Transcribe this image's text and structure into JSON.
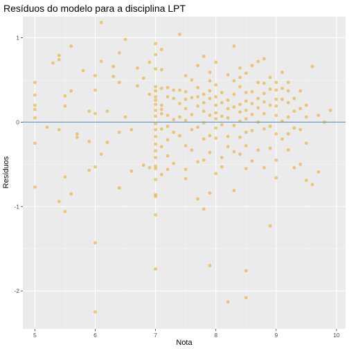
{
  "chart_data": {
    "type": "scatter",
    "title": "Resíduos do modelo para a disciplina LPT",
    "xlabel": "Nota",
    "ylabel": "Resíduos",
    "xlim": [
      4.8,
      10.15
    ],
    "ylim": [
      -2.45,
      1.25
    ],
    "x_ticks": [
      5,
      6,
      7,
      8,
      9,
      10
    ],
    "y_ticks": [
      -2,
      -1,
      0,
      1
    ],
    "hline": 0,
    "grid": true,
    "point_color": "#E69F00",
    "line_color": "#6B9AC4",
    "points": [
      [
        5.0,
        0.47
      ],
      [
        5.0,
        0.32
      ],
      [
        5.0,
        0.2
      ],
      [
        5.0,
        0.15
      ],
      [
        5.0,
        0.05
      ],
      [
        5.0,
        -0.25
      ],
      [
        5.0,
        -0.77
      ],
      [
        5.2,
        -0.06
      ],
      [
        5.3,
        0.7
      ],
      [
        5.4,
        0.79
      ],
      [
        5.4,
        0.74
      ],
      [
        5.4,
        -0.09
      ],
      [
        5.4,
        -0.94
      ],
      [
        5.5,
        0.31
      ],
      [
        5.5,
        0.19
      ],
      [
        5.5,
        -0.65
      ],
      [
        5.5,
        -1.06
      ],
      [
        5.6,
        0.9
      ],
      [
        5.6,
        0.37
      ],
      [
        5.6,
        -0.85
      ],
      [
        5.7,
        -0.14
      ],
      [
        5.7,
        -0.18
      ],
      [
        5.8,
        0.61
      ],
      [
        5.9,
        0.13
      ],
      [
        5.9,
        -0.23
      ],
      [
        5.9,
        -0.57
      ],
      [
        6.0,
        0.55
      ],
      [
        6.0,
        0.38
      ],
      [
        6.0,
        0.1
      ],
      [
        6.0,
        -0.53
      ],
      [
        6.0,
        -1.43
      ],
      [
        6.0,
        -2.25
      ],
      [
        6.1,
        1.18
      ],
      [
        6.1,
        0.72
      ],
      [
        6.1,
        -0.38
      ],
      [
        6.2,
        0.13
      ],
      [
        6.2,
        -0.24
      ],
      [
        6.3,
        0.54
      ],
      [
        6.3,
        0.66
      ],
      [
        6.4,
        0.82
      ],
      [
        6.4,
        0.47
      ],
      [
        6.4,
        -0.12
      ],
      [
        6.4,
        -0.78
      ],
      [
        6.5,
        0.98
      ],
      [
        6.5,
        0.06
      ],
      [
        6.6,
        -0.09
      ],
      [
        6.6,
        -0.58
      ],
      [
        6.7,
        0.64
      ],
      [
        6.7,
        0.43
      ],
      [
        6.8,
        0.52
      ],
      [
        6.8,
        -0.51
      ],
      [
        6.9,
        0.71
      ],
      [
        6.9,
        0.33
      ],
      [
        6.9,
        -0.54
      ],
      [
        7.0,
        0.93
      ],
      [
        7.0,
        0.8
      ],
      [
        7.0,
        0.63
      ],
      [
        7.0,
        0.42
      ],
      [
        7.0,
        0.37
      ],
      [
        7.0,
        0.3
      ],
      [
        7.0,
        0.26
      ],
      [
        7.0,
        0.21
      ],
      [
        7.0,
        0.14
      ],
      [
        7.0,
        0.07
      ],
      [
        7.0,
        -0.02
      ],
      [
        7.0,
        -0.09
      ],
      [
        7.0,
        -0.17
      ],
      [
        7.0,
        -0.26
      ],
      [
        7.0,
        -0.34
      ],
      [
        7.0,
        -0.42
      ],
      [
        7.0,
        -0.52
      ],
      [
        7.0,
        -0.55
      ],
      [
        7.0,
        -0.68
      ],
      [
        7.0,
        -0.86
      ],
      [
        7.0,
        -0.88
      ],
      [
        7.0,
        -1.1
      ],
      [
        7.0,
        -1.74
      ],
      [
        7.1,
        0.86
      ],
      [
        7.1,
        0.62
      ],
      [
        7.1,
        0.4
      ],
      [
        7.1,
        0.2
      ],
      [
        7.1,
        0.15
      ],
      [
        7.1,
        0.1
      ],
      [
        7.1,
        -0.08
      ],
      [
        7.1,
        -0.29
      ],
      [
        7.1,
        -0.62
      ],
      [
        7.2,
        0.41
      ],
      [
        7.2,
        0.3
      ],
      [
        7.2,
        0.08
      ],
      [
        7.2,
        -0.05
      ],
      [
        7.2,
        -0.21
      ],
      [
        7.2,
        -0.4
      ],
      [
        7.2,
        -0.56
      ],
      [
        7.3,
        0.38
      ],
      [
        7.3,
        0.28
      ],
      [
        7.3,
        0.03
      ],
      [
        7.3,
        -0.12
      ],
      [
        7.3,
        -0.49
      ],
      [
        7.4,
        1.04
      ],
      [
        7.4,
        0.38
      ],
      [
        7.4,
        0.22
      ],
      [
        7.4,
        0.06
      ],
      [
        7.4,
        -0.16
      ],
      [
        7.5,
        0.55
      ],
      [
        7.5,
        0.36
      ],
      [
        7.5,
        0.27
      ],
      [
        7.5,
        0.16
      ],
      [
        7.5,
        0.02
      ],
      [
        7.5,
        -0.28
      ],
      [
        7.5,
        -0.56
      ],
      [
        7.5,
        -0.67
      ],
      [
        7.6,
        0.5
      ],
      [
        7.6,
        0.29
      ],
      [
        7.6,
        0.09
      ],
      [
        7.6,
        -0.09
      ],
      [
        7.6,
        -0.33
      ],
      [
        7.7,
        0.67
      ],
      [
        7.7,
        0.41
      ],
      [
        7.7,
        0.3
      ],
      [
        7.7,
        0.19
      ],
      [
        7.7,
        -0.06
      ],
      [
        7.7,
        -0.47
      ],
      [
        7.7,
        -0.91
      ],
      [
        7.8,
        0.78
      ],
      [
        7.8,
        0.33
      ],
      [
        7.8,
        0.23
      ],
      [
        7.8,
        0.13
      ],
      [
        7.8,
        -0.01
      ],
      [
        7.8,
        -0.2
      ],
      [
        7.8,
        -0.45
      ],
      [
        7.8,
        -1.03
      ],
      [
        7.9,
        0.59
      ],
      [
        7.9,
        0.49
      ],
      [
        7.9,
        0.37
      ],
      [
        7.9,
        0.28
      ],
      [
        7.9,
        0.08
      ],
      [
        7.9,
        -0.16
      ],
      [
        7.9,
        -0.36
      ],
      [
        7.9,
        -0.84
      ],
      [
        7.9,
        -1.7
      ],
      [
        8.0,
        0.71
      ],
      [
        8.0,
        0.44
      ],
      [
        8.0,
        0.3
      ],
      [
        8.0,
        0.2
      ],
      [
        8.0,
        0.11
      ],
      [
        8.0,
        0.04
      ],
      [
        8.0,
        -0.07
      ],
      [
        8.0,
        -0.19
      ],
      [
        8.0,
        -0.61
      ],
      [
        8.1,
        0.35
      ],
      [
        8.1,
        0.23
      ],
      [
        8.1,
        0.07
      ],
      [
        8.1,
        -0.03
      ],
      [
        8.1,
        -0.42
      ],
      [
        8.1,
        -0.53
      ],
      [
        8.2,
        0.56
      ],
      [
        8.2,
        0.26
      ],
      [
        8.2,
        0.16
      ],
      [
        8.2,
        0.05
      ],
      [
        8.2,
        -0.17
      ],
      [
        8.2,
        -0.29
      ],
      [
        8.2,
        -2.13
      ],
      [
        8.3,
        0.9
      ],
      [
        8.3,
        0.49
      ],
      [
        8.3,
        0.33
      ],
      [
        8.3,
        0.18
      ],
      [
        8.3,
        -0.04
      ],
      [
        8.3,
        -0.35
      ],
      [
        8.3,
        -0.81
      ],
      [
        8.4,
        0.64
      ],
      [
        8.4,
        0.53
      ],
      [
        8.4,
        0.42
      ],
      [
        8.4,
        0.21
      ],
      [
        8.4,
        0.12
      ],
      [
        8.4,
        0.01
      ],
      [
        8.4,
        -0.18
      ],
      [
        8.4,
        -0.38
      ],
      [
        8.5,
        0.58
      ],
      [
        8.5,
        0.35
      ],
      [
        8.5,
        0.25
      ],
      [
        8.5,
        0.14
      ],
      [
        8.5,
        0.04
      ],
      [
        8.5,
        -0.12
      ],
      [
        8.5,
        -0.28
      ],
      [
        8.5,
        -0.55
      ],
      [
        8.5,
        -1.76
      ],
      [
        8.5,
        -2.08
      ],
      [
        8.6,
        0.67
      ],
      [
        8.6,
        0.36
      ],
      [
        8.6,
        0.22
      ],
      [
        8.6,
        0.09
      ],
      [
        8.6,
        -0.1
      ],
      [
        8.6,
        -0.46
      ],
      [
        8.7,
        0.72
      ],
      [
        8.7,
        0.47
      ],
      [
        8.7,
        0.28
      ],
      [
        8.7,
        0.17
      ],
      [
        8.7,
        0.0
      ],
      [
        8.7,
        -0.33
      ],
      [
        8.8,
        0.75
      ],
      [
        8.8,
        0.46
      ],
      [
        8.8,
        0.34
      ],
      [
        8.8,
        0.24
      ],
      [
        8.8,
        0.1
      ],
      [
        8.8,
        -0.08
      ],
      [
        8.8,
        -0.54
      ],
      [
        8.9,
        0.53
      ],
      [
        8.9,
        0.39
      ],
      [
        8.9,
        0.2
      ],
      [
        8.9,
        -0.05
      ],
      [
        8.9,
        -0.31
      ],
      [
        8.9,
        -1.23
      ],
      [
        9.0,
        0.47
      ],
      [
        9.0,
        0.38
      ],
      [
        9.0,
        0.27
      ],
      [
        9.0,
        0.19
      ],
      [
        9.0,
        0.08
      ],
      [
        9.0,
        -0.14
      ],
      [
        9.0,
        -0.45
      ],
      [
        9.0,
        -0.66
      ],
      [
        9.1,
        0.59
      ],
      [
        9.1,
        0.4
      ],
      [
        9.1,
        0.27
      ],
      [
        9.1,
        0.01
      ],
      [
        9.1,
        -0.2
      ],
      [
        9.2,
        0.47
      ],
      [
        9.2,
        0.37
      ],
      [
        9.2,
        0.23
      ],
      [
        9.2,
        0.06
      ],
      [
        9.2,
        -0.14
      ],
      [
        9.2,
        -0.33
      ],
      [
        9.3,
        0.28
      ],
      [
        9.3,
        0.13
      ],
      [
        9.3,
        -0.07
      ],
      [
        9.3,
        -0.54
      ],
      [
        9.4,
        0.37
      ],
      [
        9.4,
        0.16
      ],
      [
        9.4,
        -0.09
      ],
      [
        9.4,
        -0.5
      ],
      [
        9.5,
        0.2
      ],
      [
        9.5,
        0.06
      ],
      [
        9.5,
        -0.25
      ],
      [
        9.5,
        -0.69
      ],
      [
        9.6,
        0.66
      ],
      [
        9.6,
        -0.74
      ],
      [
        9.7,
        0.08
      ],
      [
        9.7,
        -0.59
      ],
      [
        9.8,
        0.0
      ],
      [
        9.9,
        0.14
      ]
    ]
  }
}
